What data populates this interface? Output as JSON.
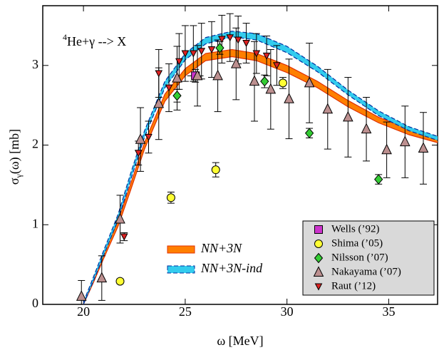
{
  "chart_data": {
    "type": "scatter",
    "annotation": {
      "sup": "4",
      "text": "He+γ --> X"
    },
    "x_label": "ω [MeV]",
    "y_label": {
      "main": "σ",
      "sub": "γ",
      "rest": "(ω) [mb]"
    },
    "xlim": [
      18,
      37.4
    ],
    "ylim": [
      0,
      3.75
    ],
    "xticks": [
      20,
      25,
      30,
      35
    ],
    "yticks": [
      0,
      1,
      2,
      3
    ],
    "bands": [
      {
        "name": "NN+3N",
        "color": "#ff7f00",
        "edge": "#e03000",
        "x": [
          20,
          20.5,
          21,
          21.7,
          22.3,
          23,
          24,
          25,
          26,
          27.3,
          28.5,
          30,
          31.5,
          33,
          34.5,
          36,
          37.4
        ],
        "lower": [
          0,
          0.28,
          0.58,
          0.98,
          1.42,
          1.95,
          2.55,
          2.87,
          3.06,
          3.11,
          3.06,
          2.91,
          2.72,
          2.48,
          2.28,
          2.13,
          2.03
        ],
        "upper": [
          0.02,
          0.32,
          0.64,
          1.05,
          1.5,
          2.03,
          2.64,
          2.96,
          3.15,
          3.2,
          3.15,
          3.0,
          2.8,
          2.56,
          2.35,
          2.2,
          2.1
        ]
      },
      {
        "name": "NN+3N-ind",
        "color": "#33ccee",
        "edge": "#0030a0",
        "x": [
          20,
          20.5,
          21,
          21.7,
          22.3,
          23,
          24,
          25,
          26,
          27.3,
          28.5,
          30,
          31.5,
          33,
          34.5,
          36,
          37.4
        ],
        "lower": [
          0,
          0.3,
          0.62,
          1.06,
          1.55,
          2.1,
          2.72,
          3.07,
          3.27,
          3.36,
          3.32,
          3.16,
          2.92,
          2.63,
          2.37,
          2.18,
          2.06
        ],
        "upper": [
          0.03,
          0.35,
          0.68,
          1.13,
          1.63,
          2.18,
          2.8,
          3.15,
          3.35,
          3.43,
          3.4,
          3.24,
          2.99,
          2.69,
          2.43,
          2.23,
          2.11
        ]
      }
    ],
    "legend": "lower right",
    "series": [
      {
        "name": "Wells (’92)",
        "color": "#cc33cc",
        "marker": "square",
        "x": [
          25.5
        ],
        "values": [
          2.87
        ],
        "errors": [
          0.08
        ],
        "xerrors": [
          0.4
        ]
      },
      {
        "name": "Shima (’05)",
        "color": "#ffff33",
        "marker": "circle",
        "x": [
          21.8,
          24.3,
          26.5,
          29.8
        ],
        "values": [
          0.29,
          1.34,
          1.69,
          2.78
        ],
        "errors": [
          0.03,
          0.07,
          0.09,
          0.07
        ]
      },
      {
        "name": "Nilsson (’07)",
        "color": "#33cc33",
        "marker": "diamond",
        "x": [
          24.6,
          26.7,
          28.9,
          31.1,
          34.5
        ],
        "values": [
          2.62,
          3.22,
          2.8,
          2.15,
          1.57
        ],
        "errors": [
          0.08,
          0.08,
          0.08,
          0.06,
          0.06
        ]
      },
      {
        "name": "Nakayama (’07)",
        "color": "#bc8f8f",
        "marker": "triangle",
        "x": [
          19.9,
          20.9,
          21.8,
          22.8,
          23.7,
          24.6,
          25.6,
          26.6,
          27.5,
          28.4,
          29.2,
          30.1,
          31.1,
          32.0,
          33.0,
          33.9,
          34.9,
          35.8,
          36.7
        ],
        "values": [
          0.1,
          0.33,
          1.07,
          2.07,
          2.52,
          2.84,
          2.87,
          2.87,
          3.02,
          2.8,
          2.7,
          2.58,
          2.78,
          2.45,
          2.35,
          2.2,
          1.94,
          2.04,
          1.96
        ],
        "errors": [
          0.2,
          0.28,
          0.3,
          0.4,
          0.45,
          0.4,
          0.38,
          0.45,
          0.45,
          0.5,
          0.5,
          0.5,
          0.5,
          0.5,
          0.5,
          0.4,
          0.35,
          0.45,
          0.45
        ]
      },
      {
        "name": "Raut (’12)",
        "color": "#dd2222",
        "marker": "triangle-down",
        "x": [
          22.0,
          22.7,
          23.2,
          23.7,
          24.2,
          24.7,
          25.0,
          25.4,
          25.8,
          26.3,
          26.8,
          27.2,
          27.6,
          28.0,
          28.5,
          29.0,
          29.5
        ],
        "values": [
          0.85,
          1.9,
          2.1,
          2.9,
          2.72,
          3.05,
          3.15,
          3.15,
          3.18,
          3.2,
          3.33,
          3.35,
          3.32,
          3.28,
          3.15,
          3.12,
          3.0
        ],
        "errors": [
          0.05,
          0.15,
          0.2,
          0.3,
          0.3,
          0.35,
          0.35,
          0.35,
          0.35,
          0.35,
          0.3,
          0.3,
          0.3,
          0.25,
          0.25,
          0.25,
          0.25
        ]
      }
    ]
  }
}
